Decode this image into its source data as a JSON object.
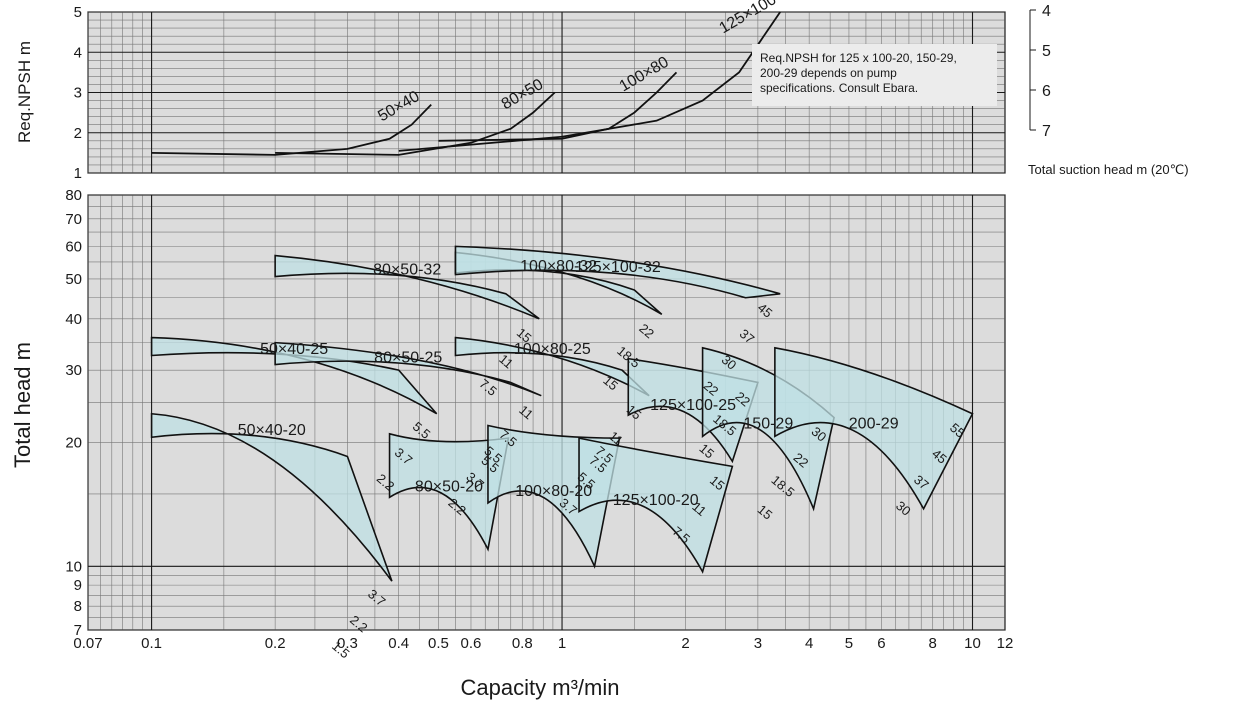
{
  "chart_data": [
    {
      "type": "line",
      "panel": "npsh",
      "ylabel": "Req.NPSH m",
      "y_scale": "linear",
      "ylim": [
        1,
        5
      ],
      "yticks": [
        "1",
        "2",
        "3",
        "4",
        "5"
      ],
      "annotation": "Req.NPSH for 125 x 100-20, 150-29, 200-29 depends on pump specifications. Consult Ebara.",
      "suction_scale": {
        "label": "Total suction head m (20℃)",
        "ticks": [
          "4",
          "5",
          "6",
          "7"
        ]
      },
      "series": [
        {
          "name": "50×40",
          "x": [
            0.1,
            0.2,
            0.3,
            0.38,
            0.43,
            0.48
          ],
          "y": [
            1.5,
            1.45,
            1.6,
            1.85,
            2.2,
            2.7
          ]
        },
        {
          "name": "80×50",
          "x": [
            0.2,
            0.4,
            0.6,
            0.75,
            0.85,
            0.96
          ],
          "y": [
            1.5,
            1.45,
            1.75,
            2.1,
            2.5,
            3.0
          ]
        },
        {
          "name": "100×80",
          "x": [
            0.5,
            1.0,
            1.3,
            1.5,
            1.7,
            1.9
          ],
          "y": [
            1.8,
            1.85,
            2.1,
            2.5,
            3.0,
            3.5
          ]
        },
        {
          "name": "125×100",
          "x": [
            0.4,
            1.0,
            1.7,
            2.2,
            2.7,
            3.1,
            3.4
          ],
          "y": [
            1.55,
            1.9,
            2.3,
            2.8,
            3.5,
            4.4,
            5.0
          ]
        }
      ]
    },
    {
      "type": "area",
      "panel": "performance",
      "xlabel": "Capacity m³/min",
      "ylabel": "Total head  m",
      "x_scale": "log",
      "y_scale": "log",
      "xlim": [
        0.07,
        12
      ],
      "ylim": [
        7,
        80
      ],
      "xticks": [
        "0.07",
        "0.1",
        "0.2",
        "0.3",
        "0.4",
        "0.5",
        "0.6",
        "0.8",
        "1",
        "2",
        "3",
        "4",
        "5",
        "6",
        "8",
        "10",
        "12"
      ],
      "yticks": [
        "7",
        "8",
        "9",
        "10",
        "20",
        "30",
        "40",
        "50",
        "60",
        "70",
        "80"
      ],
      "series": [
        {
          "name": "50×40-20",
          "x": [
            0.1,
            0.2,
            0.3,
            0.385,
            0.44
          ],
          "y": [
            23.5,
            22.3,
            18.5,
            9.2,
            17.5
          ],
          "motors_kW": [
            "3.7",
            "2.2",
            "1.5"
          ]
        },
        {
          "name": "50×40-25",
          "x": [
            0.1,
            0.25,
            0.4,
            0.495
          ],
          "y": [
            36,
            35,
            30,
            23.5
          ],
          "motors_kW": [
            "5.5",
            "3.7",
            "2.2"
          ]
        },
        {
          "name": "80×50-20",
          "x": [
            0.38,
            0.5,
            0.66,
            0.74
          ],
          "y": [
            21,
            19.5,
            11,
            20.5
          ],
          "motors_kW": [
            "5.5",
            "3.7",
            "2.2"
          ]
        },
        {
          "name": "80×50-25",
          "x": [
            0.2,
            0.5,
            0.75,
            0.89
          ],
          "y": [
            35,
            33,
            28,
            26
          ],
          "motors_kW": [
            "11",
            "7.5",
            "5.5"
          ]
        },
        {
          "name": "80×50-32",
          "x": [
            0.2,
            0.45,
            0.73,
            0.88
          ],
          "y": [
            57,
            53,
            46,
            40
          ],
          "motors_kW": [
            "15",
            "11",
            "7.5"
          ]
        },
        {
          "name": "100×80-20",
          "x": [
            0.66,
            0.9,
            1.2,
            1.38
          ],
          "y": [
            22,
            20.5,
            10,
            20.5
          ],
          "motors_kW": [
            "7.5",
            "5.5",
            "3.7"
          ]
        },
        {
          "name": "100×80-25",
          "x": [
            0.55,
            1.0,
            1.4,
            1.63
          ],
          "y": [
            36,
            34,
            30,
            26
          ],
          "motors_kW": [
            "15",
            "11",
            "7.5"
          ]
        },
        {
          "name": "100×80-32",
          "x": [
            0.55,
            1.1,
            1.5,
            1.75
          ],
          "y": [
            58,
            54,
            47,
            41
          ],
          "motors_kW": [
            "22",
            "18.5",
            "15"
          ]
        },
        {
          "name": "125×100-20",
          "x": [
            1.1,
            1.6,
            2.2,
            2.6
          ],
          "y": [
            20.5,
            19,
            9.7,
            17.5
          ],
          "motors_kW": [
            "15",
            "11",
            "7.5"
          ]
        },
        {
          "name": "125×100-25",
          "x": [
            1.45,
            2.0,
            2.6,
            3.0
          ],
          "y": [
            32,
            30.5,
            18,
            28
          ],
          "motors_kW": [
            "22",
            "18.5",
            "15"
          ]
        },
        {
          "name": "125×100-32",
          "x": [
            0.55,
            1.5,
            2.8,
            3.4
          ],
          "y": [
            60,
            58,
            45,
            46
          ],
          "motors_kW": [
            "45",
            "37",
            "30",
            "22"
          ]
        },
        {
          "name": "150-29",
          "x": [
            2.2,
            3.3,
            4.1,
            4.6
          ],
          "y": [
            34,
            31,
            13.8,
            23
          ],
          "motors_kW": [
            "30",
            "22",
            "18.5",
            "15"
          ]
        },
        {
          "name": "200-29",
          "x": [
            3.3,
            5.5,
            7.6,
            10.0
          ],
          "y": [
            34,
            31,
            13.8,
            23.5
          ],
          "motors_kW": [
            "55",
            "45",
            "37",
            "30"
          ]
        }
      ]
    }
  ]
}
